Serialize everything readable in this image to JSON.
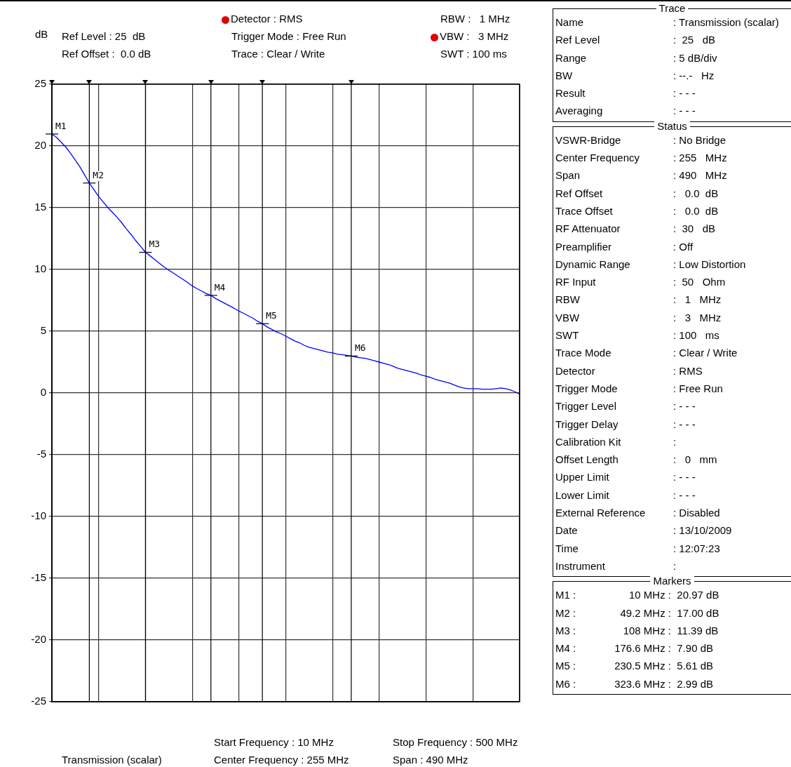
{
  "chart_data": {
    "type": "line",
    "ylabel": "dB",
    "categories": [
      null,
      null,
      null,
      null,
      null,
      null,
      null,
      null,
      null,
      null,
      null,
      null,
      null,
      null,
      null,
      null,
      null,
      null,
      null,
      null,
      null,
      null,
      null,
      null,
      null,
      null,
      null,
      null,
      null,
      null,
      null,
      null,
      null,
      null,
      null,
      null,
      null,
      null,
      null,
      null,
      null,
      null,
      null,
      null,
      null,
      null,
      null,
      null,
      null,
      null,
      null,
      null,
      null,
      null,
      null,
      null,
      null,
      null,
      null,
      null,
      null,
      null,
      null,
      null,
      null,
      null,
      null,
      null,
      null,
      null,
      null,
      null,
      null,
      null,
      null,
      null,
      null,
      null,
      null,
      null,
      null,
      null,
      null,
      null,
      null,
      null,
      null,
      null,
      null,
      null,
      null,
      null,
      null,
      null,
      null,
      null,
      null,
      null,
      null,
      null,
      null
    ],
    "series": [
      {
        "color": "#0000ff",
        "values": [
          20.97,
          20.7,
          20.3,
          19.9,
          19.4,
          18.85,
          18.3,
          17.65,
          17.0,
          16.45,
          15.9,
          15.45,
          15.0,
          14.6,
          14.2,
          13.75,
          13.25,
          12.8,
          12.3,
          11.85,
          11.39,
          11.1,
          10.8,
          10.5,
          10.2,
          9.94,
          9.7,
          9.45,
          9.2,
          8.95,
          8.67,
          8.45,
          8.25,
          8.05,
          7.9,
          7.65,
          7.45,
          7.25,
          7.05,
          6.85,
          6.63,
          6.45,
          6.25,
          6.05,
          5.8,
          5.61,
          5.35,
          5.15,
          4.95,
          4.8,
          4.6,
          4.4,
          4.2,
          4.05,
          3.85,
          3.7,
          3.6,
          3.5,
          3.4,
          3.3,
          3.25,
          3.15,
          3.1,
          3.05,
          2.99,
          2.9,
          2.85,
          2.8,
          2.7,
          2.6,
          2.5,
          2.4,
          2.3,
          2.15,
          2.0,
          1.9,
          1.8,
          1.7,
          1.6,
          1.45,
          1.35,
          1.25,
          1.1,
          1.0,
          0.9,
          0.8,
          0.65,
          0.5,
          0.4,
          0.35,
          0.35,
          0.35,
          0.3,
          0.3,
          0.3,
          0.35,
          0.4,
          0.35,
          0.25,
          0.1,
          -0.1
        ],
        "value_labels": [
          "M1",
          null,
          null,
          null,
          null,
          null,
          null,
          null,
          "M2",
          null,
          null,
          null,
          null,
          null,
          null,
          null,
          null,
          null,
          null,
          null,
          "M3",
          null,
          null,
          null,
          null,
          null,
          null,
          null,
          null,
          null,
          null,
          null,
          null,
          null,
          "M4",
          null,
          null,
          null,
          null,
          null,
          null,
          null,
          null,
          null,
          null,
          "M5",
          null,
          null,
          null,
          null,
          null,
          null,
          null,
          null,
          null,
          null,
          null,
          null,
          null,
          null,
          null,
          null,
          null,
          null,
          "M6",
          null,
          null,
          null,
          null,
          null,
          null,
          null,
          null,
          null,
          null,
          null,
          null,
          null,
          null,
          null,
          null,
          null,
          null,
          null,
          null,
          null,
          null,
          null,
          null,
          null,
          null,
          null,
          null,
          null,
          null,
          null,
          null,
          null,
          null,
          null,
          null
        ]
      }
    ],
    "ylim": [
      -25,
      25
    ],
    "yticks": [
      -25,
      -20,
      -15,
      -10,
      -5,
      0,
      5,
      10,
      15,
      20,
      25
    ],
    "tick_labels": "y",
    "grid": true,
    "legend": false,
    "marker": "none",
    "line_style": "solid",
    "annotations": [
      "Ref Level : 25  dB",
      "Ref Offset :  0.0 dB",
      "Detector : RMS",
      "Trigger Mode : Free Run",
      "Trace : Clear / Write",
      "RBW :   1 MHz",
      "VBW :   3 MHz",
      "SWT : 100 ms",
      "Transmission (scalar)",
      "Start Frequency : 10 MHz",
      "Center Frequency : 255 MHz",
      "Stop Frequency : 500 MHz",
      "Span : 490 MHz",
      "Trace",
      "Name : Transmission (scalar)",
      "Ref Level :  25   dB",
      "Range : 5 dB/div",
      "BW : --.-   Hz",
      "Result : - - -",
      "Averaging : - - -",
      "Status",
      "VSWR-Bridge : No Bridge",
      "Center Frequency : 255   MHz",
      "Span : 490   MHz",
      "Ref Offset :   0.0  dB",
      "Trace Offset :   0.0  dB",
      "RF Attenuator :  30   dB",
      "Preamplifier : Off",
      "Dynamic Range : Low Distortion",
      "RF Input :  50   Ohm",
      "RBW :   1   MHz",
      "VBW :   3   MHz",
      "SWT : 100   ms",
      "Trace Mode : Clear / Write",
      "Detector : RMS",
      "Trigger Mode : Free Run",
      "Trigger Level : - - -",
      "Trigger Delay : - - -",
      "Calibration Kit : ",
      "Offset Length :   0   mm",
      "Upper Limit : - - -",
      "Lower Limit : - - -",
      "External Reference : Disabled",
      "Date : 13/10/2009",
      "Time : 12:07:23",
      "Instrument : ",
      "Markers",
      "M1 : 10 MHz : 20.97 dB",
      "M2 : 49.2 MHz : 17.00 dB",
      "M3 : 108 MHz : 11.39 dB",
      "M4 : 176.6 MHz : 7.90 dB",
      "M5 : 230.5 MHz : 5.61 dB",
      "M6 : 323.6 MHz : 2.99 dB"
    ]
  }
}
